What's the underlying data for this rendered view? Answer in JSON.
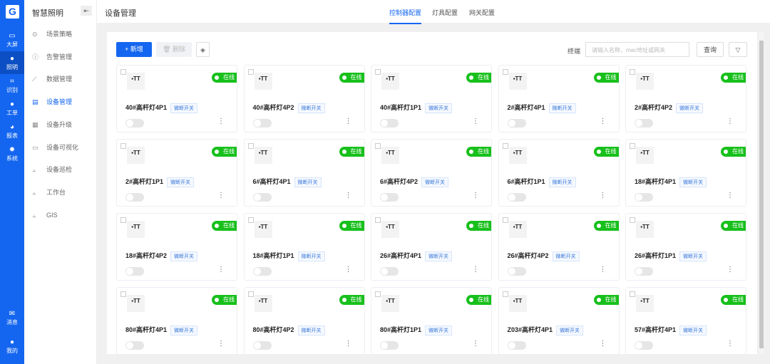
{
  "rail": {
    "logo": "G",
    "items": [
      {
        "label": "大屏",
        "icon": "monitor-icon"
      },
      {
        "label": "照明",
        "icon": "bulb-icon",
        "active": true
      },
      {
        "label": "识别",
        "icon": "scan-icon"
      },
      {
        "label": "工单",
        "icon": "pin-icon"
      },
      {
        "label": "报表",
        "icon": "pie-icon"
      },
      {
        "label": "系统",
        "icon": "gear-icon"
      }
    ],
    "bottom": [
      {
        "label": "消息",
        "icon": "mail-icon"
      },
      {
        "label": "我的",
        "icon": "user-icon"
      }
    ]
  },
  "menu": {
    "title": "智慧照明",
    "items": [
      {
        "label": "场景策略",
        "icon": "⊙"
      },
      {
        "label": "告警管理",
        "icon": "ⓘ"
      },
      {
        "label": "数据管理",
        "icon": "⟋"
      },
      {
        "label": "设备管理",
        "icon": "▤",
        "active": true
      },
      {
        "label": "设备升级",
        "icon": "▦"
      },
      {
        "label": "设备可视化",
        "icon": "▭"
      },
      {
        "label": "设备巡检",
        "icon": "⫠"
      },
      {
        "label": "工作台",
        "icon": "⫠"
      },
      {
        "label": "GIS",
        "icon": "⫠"
      }
    ]
  },
  "header": {
    "title": "设备管理",
    "tabs": [
      {
        "label": "控制器配置",
        "active": true
      },
      {
        "label": "灯具配置"
      },
      {
        "label": "网关配置"
      }
    ]
  },
  "toolbar": {
    "add": "+ 新增",
    "delete": "🗑 删除",
    "search_label": "终端",
    "search_placeholder": "请输入名称、mac地址或网关",
    "query": "查询"
  },
  "card_common": {
    "status": "在线",
    "tag": "微断开关",
    "status_color": "#18c01c"
  },
  "devices": [
    "40#高杆灯4P1",
    "40#高杆灯4P2",
    "40#高杆灯1P1",
    "2#高杆灯4P1",
    "2#高杆灯4P2",
    "2#高杆灯1P1",
    "6#高杆灯4P1",
    "6#高杆灯4P2",
    "6#高杆灯1P1",
    "18#高杆灯4P1",
    "18#高杆灯4P2",
    "18#高杆灯1P1",
    "26#高杆灯4P1",
    "26#高杆灯4P2",
    "26#高杆灯1P1",
    "80#高杆灯4P1",
    "80#高杆灯4P2",
    "80#高杆灯1P1",
    "Z03#高杆灯4P1",
    "57#高杆灯4P1"
  ]
}
